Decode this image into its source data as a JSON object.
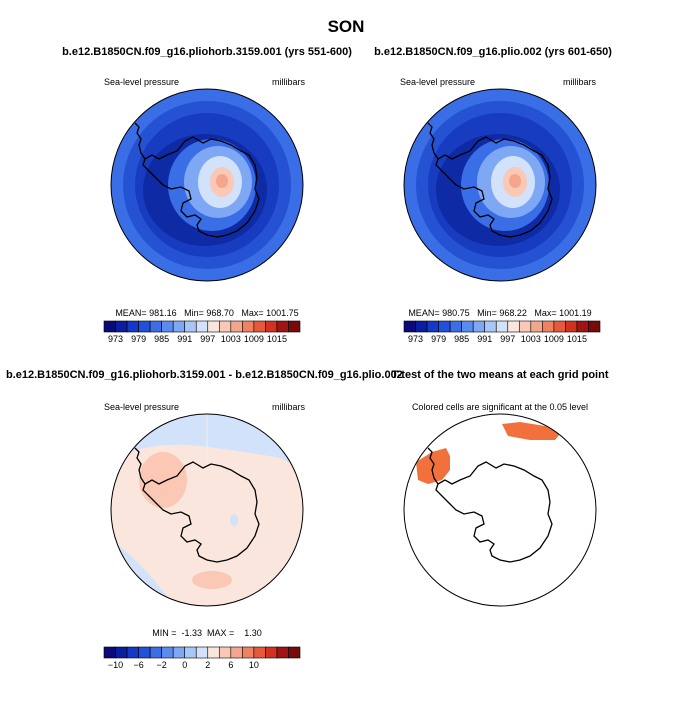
{
  "figure": {
    "season": "SON"
  },
  "panels": {
    "top_left": {
      "title": "b.e12.B1850CN.f09_g16.pliohorb.3159.001 (yrs 551-600)",
      "variable": "Sea-level pressure",
      "units": "millibars",
      "stats": "MEAN= 981.16   Min= 968.70   Max= 1001.75"
    },
    "top_right": {
      "title": "b.e12.B1850CN.f09_g16.plio.002 (yrs 601-650)",
      "variable": "Sea-level pressure",
      "units": "millibars",
      "stats": "MEAN= 980.75   Min= 968.22   Max= 1001.19"
    },
    "bottom_left": {
      "title": "b.e12.B1850CN.f09_g16.pliohorb.3159.001 - b.e12.B1850CN.f09_g16.plio.002",
      "variable": "Sea-level pressure",
      "units": "millibars",
      "stats": "MIN =  -1.33  MAX =    1.30"
    },
    "bottom_right": {
      "title": "T-test of the two means at each grid point",
      "subtitle": "Colored cells are significant at the 0.05 level"
    }
  },
  "colorbars": {
    "slp": {
      "colors": [
        "#0a0a78",
        "#0c1ea0",
        "#1438c8",
        "#2050dc",
        "#3c6ee6",
        "#5a8cf0",
        "#7ea8f4",
        "#a8c6f8",
        "#d2e2fa",
        "#fae6dc",
        "#fac8b4",
        "#f4a68c",
        "#f08264",
        "#e65a3c",
        "#d23220",
        "#a01414",
        "#780a0a"
      ],
      "labels": [
        "973",
        "979",
        "985",
        "991",
        "997",
        "1003",
        "1009",
        "1015"
      ]
    },
    "diff": {
      "colors": [
        "#0a0a78",
        "#0c1ea0",
        "#1438c8",
        "#2050dc",
        "#3c6ee6",
        "#5a8cf0",
        "#7ea8f4",
        "#a8c6f8",
        "#d2e2fa",
        "#fae6dc",
        "#fac8b4",
        "#f4a68c",
        "#f08264",
        "#e65a3c",
        "#d23220",
        "#a01414",
        "#780a0a"
      ],
      "labels": [
        "−10",
        "−6",
        "−2",
        "0",
        "2",
        "6",
        "10"
      ]
    }
  },
  "colors": {
    "significant": "#f2703c",
    "land_outline": "#000000"
  }
}
